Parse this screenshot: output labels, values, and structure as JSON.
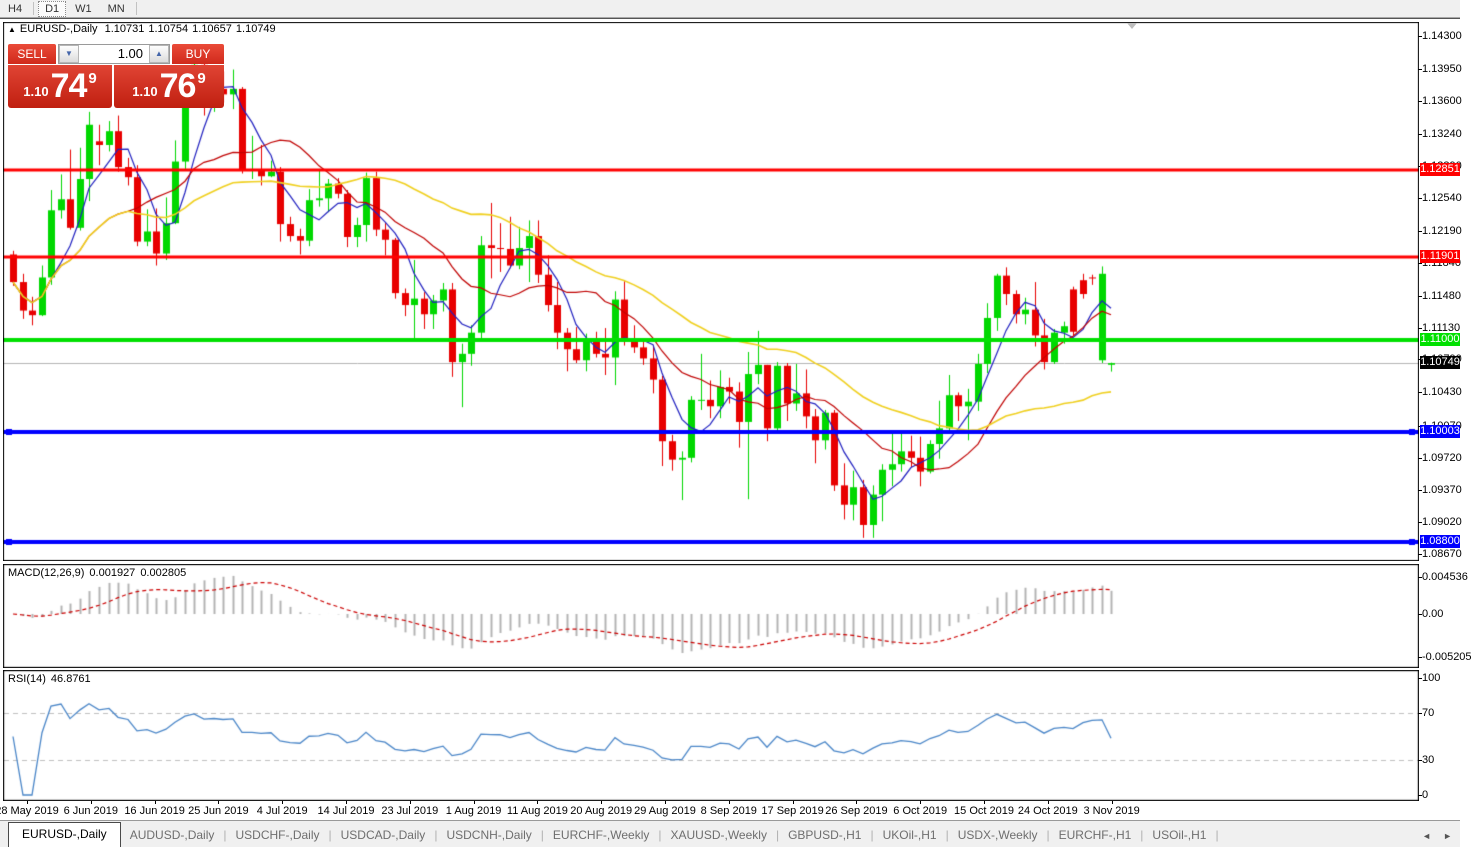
{
  "toolbar": {
    "timeframes": [
      {
        "label": "H4",
        "active": false
      },
      {
        "label": "D1",
        "active": true
      },
      {
        "label": "W1",
        "active": false
      },
      {
        "label": "MN",
        "active": false
      }
    ]
  },
  "icons": {
    "collapse": "▲",
    "stepper_down": "▼",
    "stepper_up": "▲",
    "tab_scroll_left": "◄",
    "tab_scroll_right": "►"
  },
  "chart_header": {
    "symbol": "EURUSD-,Daily",
    "open": "1.10731",
    "high": "1.10754",
    "low": "1.10657",
    "close": "1.10749"
  },
  "trade_panel": {
    "sell_label": "SELL",
    "buy_label": "BUY",
    "volume": "1.00",
    "sell_price_prefix": "1.10",
    "sell_price_big": "74",
    "sell_price_sup": "9",
    "buy_price_prefix": "1.10",
    "buy_price_big": "76",
    "buy_price_sup": "9"
  },
  "chart_data": {
    "type": "candlestick",
    "title": "EURUSD-,Daily",
    "ohlc_readout": {
      "open": 1.10731,
      "high": 1.10754,
      "low": 1.10657,
      "close": 1.10749
    },
    "bull_color": "#00d800",
    "bear_color": "#e80000",
    "y_range": {
      "top": 1.14446,
      "bottom": 1.08609
    },
    "price_axis_ticks": [
      "1.14300",
      "1.13950",
      "1.13600",
      "1.13240",
      "1.12890",
      "1.12540",
      "1.12190",
      "1.11840",
      "1.11480",
      "1.11130",
      "1.10790",
      "1.10430",
      "1.10070",
      "1.09720",
      "1.09370",
      "1.09020",
      "1.08670"
    ],
    "levels": [
      {
        "price": 1.12851,
        "label": "1.12851",
        "color": "#ff0000",
        "thickness": 3,
        "end_markers": false
      },
      {
        "price": 1.11901,
        "label": "1.11901",
        "color": "#ff0000",
        "thickness": 3,
        "end_markers": false
      },
      {
        "price": 1.11,
        "label": "1.11000",
        "color": "#00e000",
        "thickness": 4,
        "end_markers": false
      },
      {
        "price": 1.10003,
        "label": "1.10003",
        "color": "#0000ff",
        "thickness": 4,
        "end_markers": true
      },
      {
        "price": 1.088,
        "label": "1.08800",
        "color": "#0000ff",
        "thickness": 4,
        "end_markers": true
      }
    ],
    "current_price": {
      "value": 1.10749,
      "label": "1.10749",
      "line_color": "#b4b4b4",
      "badge_bg": "#000000"
    },
    "date_labels": [
      "28 May 2019",
      "6 Jun 2019",
      "16 Jun 2019",
      "25 Jun 2019",
      "4 Jul 2019",
      "14 Jul 2019",
      "23 Jul 2019",
      "1 Aug 2019",
      "11 Aug 2019",
      "20 Aug 2019",
      "29 Aug 2019",
      "8 Sep 2019",
      "17 Sep 2019",
      "26 Sep 2019",
      "6 Oct 2019",
      "15 Oct 2019",
      "24 Oct 2019",
      "3 Nov 2019"
    ],
    "moving_averages": [
      {
        "period": 5,
        "color": "#2020c0",
        "style": "solid"
      },
      {
        "period": 13,
        "color": "#c00000",
        "style": "solid"
      },
      {
        "period": 34,
        "color": "#f0d020",
        "style": "solid"
      }
    ],
    "candles": [
      [
        1.1193,
        1.1197,
        1.1159,
        1.1163
      ],
      [
        1.1163,
        1.1172,
        1.1123,
        1.1132
      ],
      [
        1.1132,
        1.1147,
        1.1116,
        1.1127
      ],
      [
        1.1127,
        1.1181,
        1.1126,
        1.1168
      ],
      [
        1.1168,
        1.1263,
        1.116,
        1.1241
      ],
      [
        1.1241,
        1.128,
        1.1232,
        1.1253
      ],
      [
        1.1253,
        1.1307,
        1.122,
        1.1222
      ],
      [
        1.1222,
        1.1309,
        1.1219,
        1.1275
      ],
      [
        1.1275,
        1.1348,
        1.1251,
        1.1334
      ],
      [
        1.1316,
        1.1334,
        1.129,
        1.1312
      ],
      [
        1.1312,
        1.1338,
        1.1305,
        1.1327
      ],
      [
        1.1327,
        1.1344,
        1.1283,
        1.1288
      ],
      [
        1.1288,
        1.1298,
        1.1268,
        1.1277
      ],
      [
        1.1277,
        1.129,
        1.1202,
        1.1207
      ],
      [
        1.1207,
        1.1242,
        1.1202,
        1.1218
      ],
      [
        1.1218,
        1.1243,
        1.1181,
        1.1194
      ],
      [
        1.1194,
        1.1255,
        1.1187,
        1.1227
      ],
      [
        1.1227,
        1.1317,
        1.1226,
        1.1294
      ],
      [
        1.1294,
        1.1378,
        1.1286,
        1.1369
      ],
      [
        1.1369,
        1.1412,
        1.1362,
        1.1399
      ],
      [
        1.1399,
        1.1402,
        1.1344,
        1.1365
      ],
      [
        1.1365,
        1.1391,
        1.1348,
        1.1373
      ],
      [
        1.1373,
        1.1392,
        1.1358,
        1.1367
      ],
      [
        1.1367,
        1.1394,
        1.1351,
        1.1373
      ],
      [
        1.1373,
        1.1375,
        1.1281,
        1.1285
      ],
      [
        1.1285,
        1.1322,
        1.1275,
        1.1285
      ],
      [
        1.1285,
        1.1312,
        1.1268,
        1.1278
      ],
      [
        1.1278,
        1.1295,
        1.1277,
        1.1283
      ],
      [
        1.1283,
        1.1288,
        1.1207,
        1.1226
      ],
      [
        1.1226,
        1.1234,
        1.1207,
        1.1213
      ],
      [
        1.1213,
        1.1221,
        1.1193,
        1.1208
      ],
      [
        1.1208,
        1.1264,
        1.1202,
        1.1252
      ],
      [
        1.1252,
        1.1286,
        1.1245,
        1.1254
      ],
      [
        1.1254,
        1.1275,
        1.1239,
        1.127
      ],
      [
        1.127,
        1.1276,
        1.1254,
        1.1259
      ],
      [
        1.1259,
        1.1263,
        1.1201,
        1.1212
      ],
      [
        1.1212,
        1.1233,
        1.1201,
        1.1225
      ],
      [
        1.1225,
        1.1282,
        1.1207,
        1.1276
      ],
      [
        1.1276,
        1.1283,
        1.1213,
        1.122
      ],
      [
        1.122,
        1.1227,
        1.1192,
        1.1209
      ],
      [
        1.1209,
        1.1211,
        1.1145,
        1.1151
      ],
      [
        1.1151,
        1.1156,
        1.1126,
        1.1138
      ],
      [
        1.1138,
        1.1187,
        1.1101,
        1.1145
      ],
      [
        1.1145,
        1.1152,
        1.1112,
        1.1128
      ],
      [
        1.1128,
        1.1149,
        1.1112,
        1.1143
      ],
      [
        1.1143,
        1.1162,
        1.1131,
        1.1155
      ],
      [
        1.1155,
        1.1162,
        1.106,
        1.1076
      ],
      [
        1.1076,
        1.1096,
        1.1027,
        1.1085
      ],
      [
        1.1085,
        1.1116,
        1.1072,
        1.1108
      ],
      [
        1.1108,
        1.1213,
        1.1101,
        1.1203
      ],
      [
        1.1203,
        1.1249,
        1.1167,
        1.12
      ],
      [
        1.12,
        1.1227,
        1.1174,
        1.1199
      ],
      [
        1.1199,
        1.1234,
        1.1178,
        1.1181
      ],
      [
        1.1181,
        1.1223,
        1.1177,
        1.12
      ],
      [
        1.12,
        1.123,
        1.1163,
        1.1213
      ],
      [
        1.1213,
        1.123,
        1.1162,
        1.1171
      ],
      [
        1.1171,
        1.1192,
        1.1131,
        1.1138
      ],
      [
        1.1138,
        1.1163,
        1.109,
        1.1108
      ],
      [
        1.1108,
        1.1113,
        1.1066,
        1.109
      ],
      [
        1.109,
        1.1114,
        1.1075,
        1.1078
      ],
      [
        1.1078,
        1.1107,
        1.1066,
        1.11
      ],
      [
        1.11,
        1.1109,
        1.1081,
        1.1085
      ],
      [
        1.1085,
        1.1113,
        1.1062,
        1.1081
      ],
      [
        1.1081,
        1.1153,
        1.1051,
        1.1144
      ],
      [
        1.1144,
        1.1164,
        1.1094,
        1.1102
      ],
      [
        1.1102,
        1.1116,
        1.1086,
        1.1092
      ],
      [
        1.1092,
        1.1098,
        1.1073,
        1.108
      ],
      [
        1.108,
        1.1094,
        1.1042,
        1.1057
      ],
      [
        1.1057,
        1.1061,
        1.0963,
        1.099
      ],
      [
        1.099,
        1.0997,
        1.0958,
        1.097
      ],
      [
        1.097,
        1.0979,
        1.0926,
        1.0972
      ],
      [
        1.0972,
        1.1039,
        1.0967,
        1.1035
      ],
      [
        1.1035,
        1.1085,
        1.1024,
        1.1035
      ],
      [
        1.1035,
        1.1056,
        1.1015,
        1.1028
      ],
      [
        1.1028,
        1.1067,
        1.1015,
        1.1049
      ],
      [
        1.1049,
        1.1059,
        1.1031,
        1.1044
      ],
      [
        1.1044,
        1.1054,
        1.0983,
        1.1011
      ],
      [
        1.1011,
        1.1087,
        1.0927,
        1.1063
      ],
      [
        1.1063,
        1.111,
        1.1052,
        1.1073
      ],
      [
        1.1073,
        1.1073,
        1.099,
        1.1004
      ],
      [
        1.1004,
        1.1076,
        1.1001,
        1.1072
      ],
      [
        1.1072,
        1.1075,
        1.1012,
        1.1031
      ],
      [
        1.1031,
        1.1074,
        1.1023,
        1.1042
      ],
      [
        1.1042,
        1.1068,
        1.1004,
        1.1017
      ],
      [
        1.1017,
        1.1025,
        1.0966,
        1.0991
      ],
      [
        1.0991,
        1.1024,
        1.0981,
        1.1021
      ],
      [
        1.1021,
        1.1024,
        1.0936,
        1.0942
      ],
      [
        1.0942,
        1.0966,
        1.0905,
        1.0921
      ],
      [
        1.0921,
        1.0958,
        1.0904,
        1.094
      ],
      [
        1.094,
        1.0948,
        1.0885,
        1.0899
      ],
      [
        1.0899,
        1.0942,
        1.0885,
        1.0932
      ],
      [
        1.0932,
        1.0965,
        1.0903,
        1.0959
      ],
      [
        1.0959,
        1.0999,
        1.0941,
        1.0965
      ],
      [
        1.0965,
        1.0999,
        1.0957,
        1.0979
      ],
      [
        1.0979,
        1.0996,
        1.0962,
        1.0972
      ],
      [
        1.0972,
        1.0995,
        1.0941,
        1.0957
      ],
      [
        1.0957,
        1.0991,
        1.0955,
        1.0987
      ],
      [
        1.0987,
        1.1034,
        1.0971,
        1.1004
      ],
      [
        1.1004,
        1.1062,
        1.1002,
        1.104
      ],
      [
        1.104,
        1.1043,
        1.1012,
        1.1028
      ],
      [
        1.1028,
        1.1047,
        1.0991,
        1.1033
      ],
      [
        1.1033,
        1.1085,
        1.1023,
        1.1074
      ],
      [
        1.1074,
        1.114,
        1.1064,
        1.1124
      ],
      [
        1.1124,
        1.1172,
        1.111,
        1.117
      ],
      [
        1.117,
        1.1179,
        1.1138,
        1.115
      ],
      [
        1.115,
        1.1154,
        1.1118,
        1.1128
      ],
      [
        1.1128,
        1.1146,
        1.1117,
        1.1133
      ],
      [
        1.1133,
        1.1163,
        1.1093,
        1.1105
      ],
      [
        1.1105,
        1.1123,
        1.1068,
        1.1076
      ],
      [
        1.1076,
        1.1112,
        1.1074,
        1.1108
      ],
      [
        1.1108,
        1.112,
        1.1096,
        1.1115
      ],
      [
        1.1155,
        1.1158,
        1.1105,
        1.1109
      ],
      [
        1.1165,
        1.1172,
        1.1145,
        1.115
      ],
      [
        1.1168,
        1.1171,
        1.116,
        1.1167
      ],
      [
        1.1078,
        1.118,
        1.1075,
        1.1172
      ],
      [
        1.10731,
        1.10754,
        1.10657,
        1.10749
      ]
    ],
    "macd": {
      "label": "MACD(12,26,9)",
      "fast": 12,
      "slow": 26,
      "signal": 9,
      "readout": [
        "0.001927",
        "0.002805"
      ],
      "axis_ticks": [
        "0.004536",
        "0.00",
        "-0.005205"
      ],
      "histogram_color": "#b4b4b4",
      "signal_color": "#cc0000"
    },
    "rsi": {
      "label": "RSI(14)",
      "period": 14,
      "readout": "46.8761",
      "axis_ticks": [
        "100",
        "70",
        "30",
        "0"
      ],
      "levels": [
        70,
        30
      ],
      "line_color": "#4a86c8",
      "level_color": "#c0c0c0"
    }
  },
  "tabs": {
    "items": [
      {
        "label": "EURUSD-,Daily",
        "active": true
      },
      {
        "label": "AUDUSD-,Daily",
        "active": false
      },
      {
        "label": "USDCHF-,Daily",
        "active": false
      },
      {
        "label": "USDCAD-,Daily",
        "active": false
      },
      {
        "label": "USDCNH-,Daily",
        "active": false
      },
      {
        "label": "EURCHF-,Weekly",
        "active": false
      },
      {
        "label": "XAUUSD-,Weekly",
        "active": false
      },
      {
        "label": "GBPUSD-,H1",
        "active": false
      },
      {
        "label": "UKOil-,H1",
        "active": false
      },
      {
        "label": "USDX-,Weekly",
        "active": false
      },
      {
        "label": "EURCHF-,H1",
        "active": false
      },
      {
        "label": "USOil-,H1",
        "active": false
      }
    ]
  }
}
